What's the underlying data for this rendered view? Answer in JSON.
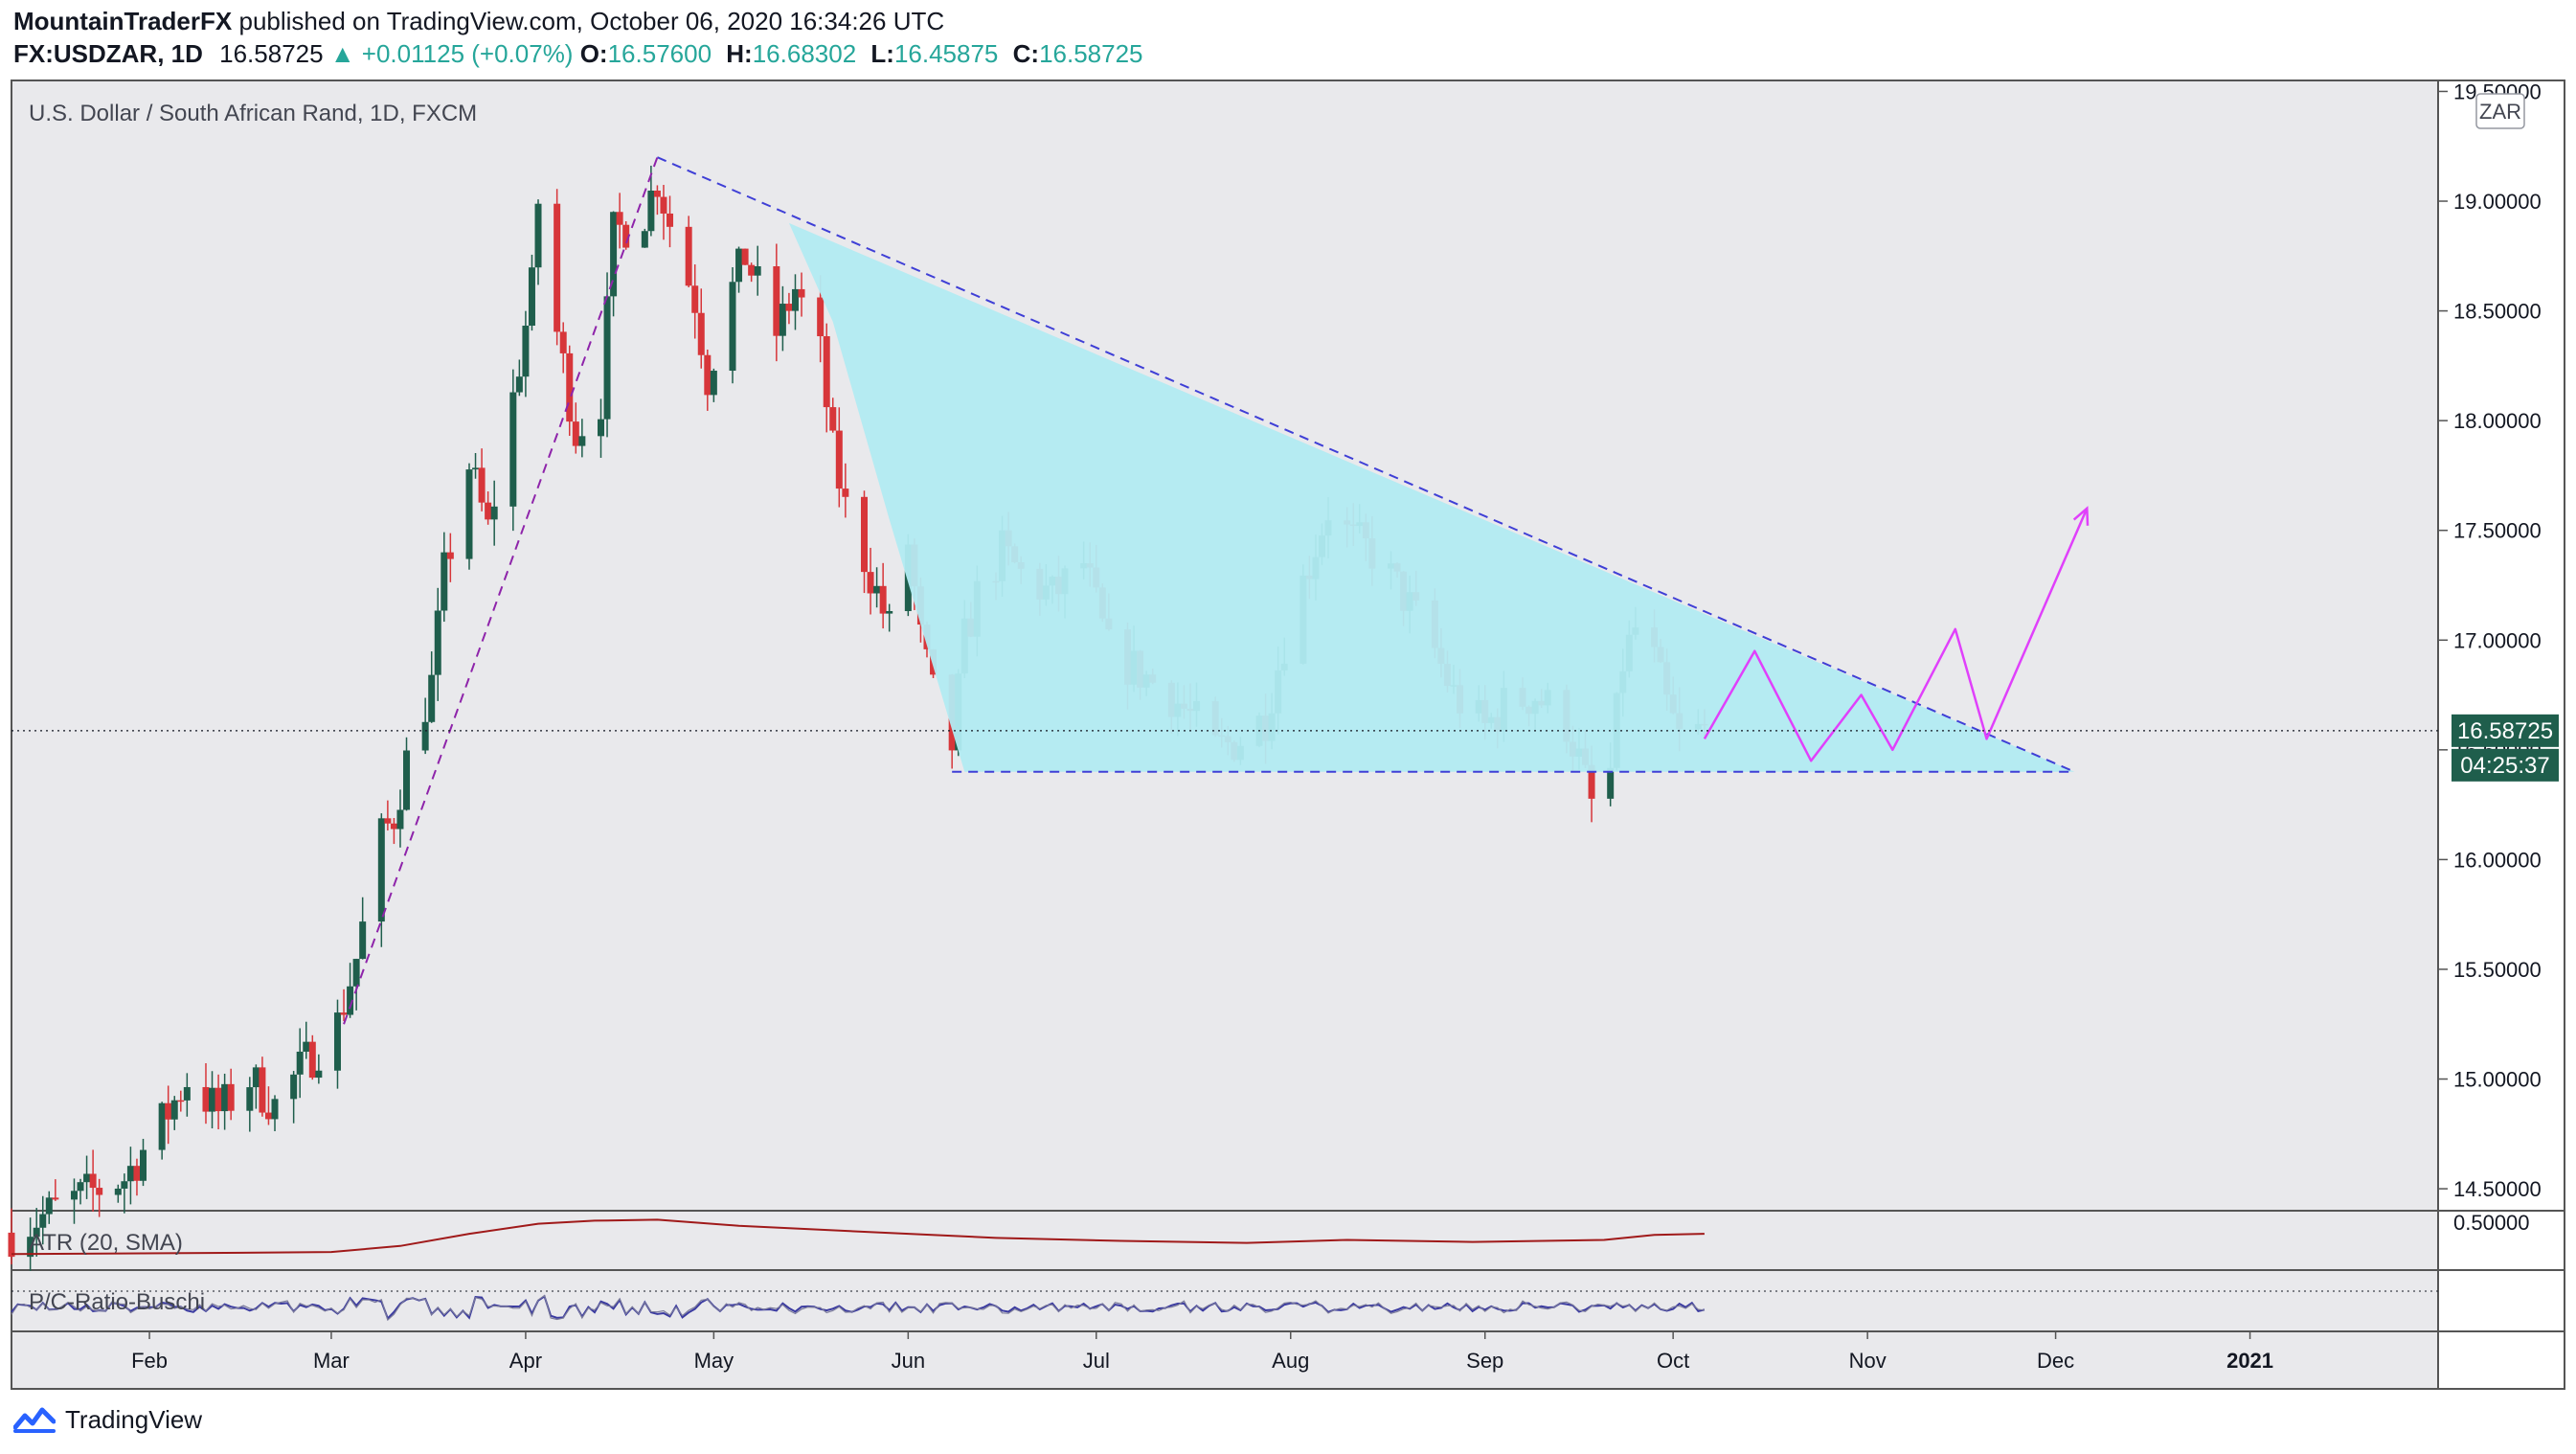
{
  "header": {
    "author": "MountainTraderFX",
    "published_text": "published on TradingView.com, October 06, 2020 16:34:26 UTC",
    "symbol": "FX:USDZAR, 1D",
    "last": "16.58725",
    "change": "▲ +0.01125 (+0.07%)",
    "o_label": "O:",
    "o_value": "16.57600",
    "h_label": "H:",
    "h_value": "16.68302",
    "l_label": "L:",
    "l_value": "16.45875",
    "c_label": "C:",
    "c_value": "16.58725"
  },
  "chart_title": "U.S. Dollar / South African Rand, 1D, FXCM",
  "currency_badge": "ZAR",
  "price_badge": "16.58725",
  "countdown_badge": "04:25:37",
  "atr_label": "ATR (20, SMA)",
  "atr_axis_label": "0.50000",
  "pc_label": "P/C-Ratio-Buschi",
  "brand": "TradingView",
  "colors": {
    "up": "#26a69a",
    "candle_up": "#1f5e4c",
    "candle_down": "#d7363a",
    "pattern_fill": "#b2ebf2",
    "trendline": "#3f3fd6",
    "projection": "#e040fb",
    "atr_line": "#a01a1a",
    "pc_line": "#3a3aa0"
  },
  "chart_data": {
    "type": "candlestick",
    "title": "U.S. Dollar / South African Rand, 1D, FXCM",
    "y_axis": {
      "min": 14.4,
      "max": 19.55,
      "ticks": [
        "14.50000",
        "15.00000",
        "15.50000",
        "16.00000",
        "16.50000",
        "17.00000",
        "17.50000",
        "18.00000",
        "18.50000",
        "19.00000",
        "19.50000"
      ]
    },
    "x_axis": {
      "start": "2020-01-10",
      "end": "2021-01-31",
      "labels": [
        {
          "date": "2020-02-01",
          "text": "Feb"
        },
        {
          "date": "2020-03-01",
          "text": "Mar"
        },
        {
          "date": "2020-04-01",
          "text": "Apr"
        },
        {
          "date": "2020-05-01",
          "text": "May"
        },
        {
          "date": "2020-06-01",
          "text": "Jun"
        },
        {
          "date": "2020-07-01",
          "text": "Jul"
        },
        {
          "date": "2020-08-01",
          "text": "Aug"
        },
        {
          "date": "2020-09-01",
          "text": "Sep"
        },
        {
          "date": "2020-10-01",
          "text": "Oct"
        },
        {
          "date": "2020-11-01",
          "text": "Nov"
        },
        {
          "date": "2020-12-01",
          "text": "Dec"
        },
        {
          "date": "2021-01-01",
          "text": "2021"
        }
      ]
    },
    "close_path": [
      [
        "2020-01-10",
        14.3
      ],
      [
        "2020-01-20",
        14.45
      ],
      [
        "2020-01-28",
        14.55
      ],
      [
        "2020-02-03",
        14.8
      ],
      [
        "2020-02-07",
        15.0
      ],
      [
        "2020-02-12",
        14.85
      ],
      [
        "2020-02-17",
        15.0
      ],
      [
        "2020-02-21",
        14.88
      ],
      [
        "2020-02-26",
        15.08
      ],
      [
        "2020-03-02",
        15.25
      ],
      [
        "2020-03-05",
        15.55
      ],
      [
        "2020-03-09",
        16.1
      ],
      [
        "2020-03-11",
        16.2
      ],
      [
        "2020-03-13",
        16.45
      ],
      [
        "2020-03-17",
        16.8
      ],
      [
        "2020-03-19",
        17.3
      ],
      [
        "2020-03-23",
        17.8
      ],
      [
        "2020-03-26",
        17.5
      ],
      [
        "2020-03-30",
        18.1
      ],
      [
        "2020-04-02",
        18.6
      ],
      [
        "2020-04-03",
        19.0
      ],
      [
        "2020-04-06",
        18.4
      ],
      [
        "2020-04-09",
        17.95
      ],
      [
        "2020-04-13",
        18.1
      ],
      [
        "2020-04-15",
        18.85
      ],
      [
        "2020-04-20",
        18.95
      ],
      [
        "2020-04-22",
        19.1
      ],
      [
        "2020-04-24",
        18.9
      ],
      [
        "2020-04-28",
        18.55
      ],
      [
        "2020-04-30",
        18.2
      ],
      [
        "2020-05-04",
        18.6
      ],
      [
        "2020-05-06",
        18.75
      ],
      [
        "2020-05-11",
        18.4
      ],
      [
        "2020-05-14",
        18.6
      ],
      [
        "2020-05-18",
        18.3
      ],
      [
        "2020-05-20",
        17.85
      ],
      [
        "2020-05-22",
        17.6
      ],
      [
        "2020-05-26",
        17.3
      ],
      [
        "2020-05-29",
        17.05
      ],
      [
        "2020-06-01",
        17.45
      ],
      [
        "2020-06-03",
        17.0
      ],
      [
        "2020-06-05",
        16.75
      ],
      [
        "2020-06-08",
        16.52
      ],
      [
        "2020-06-10",
        17.0
      ],
      [
        "2020-06-12",
        17.2
      ],
      [
        "2020-06-16",
        17.4
      ],
      [
        "2020-06-19",
        17.3
      ],
      [
        "2020-06-24",
        17.2
      ],
      [
        "2020-06-29",
        17.35
      ],
      [
        "2020-07-03",
        16.95
      ],
      [
        "2020-07-08",
        16.85
      ],
      [
        "2020-07-13",
        16.75
      ],
      [
        "2020-07-17",
        16.62
      ],
      [
        "2020-07-20",
        16.5
      ],
      [
        "2020-07-24",
        16.55
      ],
      [
        "2020-07-28",
        16.65
      ],
      [
        "2020-07-31",
        17.0
      ],
      [
        "2020-08-04",
        17.35
      ],
      [
        "2020-08-07",
        17.6
      ],
      [
        "2020-08-11",
        17.45
      ],
      [
        "2020-08-14",
        17.4
      ],
      [
        "2020-08-19",
        17.2
      ],
      [
        "2020-08-24",
        16.95
      ],
      [
        "2020-08-27",
        16.75
      ],
      [
        "2020-09-01",
        16.6
      ],
      [
        "2020-09-04",
        16.7
      ],
      [
        "2020-09-09",
        16.75
      ],
      [
        "2020-09-14",
        16.62
      ],
      [
        "2020-09-16",
        16.45
      ],
      [
        "2020-09-18",
        16.25
      ],
      [
        "2020-09-21",
        16.4
      ],
      [
        "2020-09-23",
        16.9
      ],
      [
        "2020-09-25",
        17.05
      ],
      [
        "2020-09-28",
        16.9
      ],
      [
        "2020-09-30",
        16.7
      ],
      [
        "2020-10-02",
        16.55
      ],
      [
        "2020-10-06",
        16.58725
      ]
    ],
    "overlays": {
      "descending_trendline": {
        "from": [
          "2020-04-22",
          19.2
        ],
        "to": [
          "2020-12-04",
          16.4
        ]
      },
      "support_line": {
        "from": [
          "2020-06-08",
          16.4
        ],
        "to": [
          "2020-12-04",
          16.4
        ]
      },
      "rally_trendline": {
        "from": [
          "2020-03-03",
          15.25
        ],
        "to": [
          "2020-04-22",
          19.2
        ]
      },
      "projection_path": [
        [
          "2020-10-06",
          16.55
        ],
        [
          "2020-10-14",
          16.95
        ],
        [
          "2020-10-23",
          16.45
        ],
        [
          "2020-10-31",
          16.75
        ],
        [
          "2020-11-05",
          16.5
        ],
        [
          "2020-11-15",
          17.05
        ],
        [
          "2020-11-20",
          16.55
        ],
        [
          "2020-12-06",
          17.6
        ]
      ]
    },
    "atr_series": [
      [
        "2020-01-10",
        0.14
      ],
      [
        "2020-02-10",
        0.15
      ],
      [
        "2020-03-01",
        0.16
      ],
      [
        "2020-03-12",
        0.22
      ],
      [
        "2020-03-23",
        0.34
      ],
      [
        "2020-04-03",
        0.44
      ],
      [
        "2020-04-12",
        0.47
      ],
      [
        "2020-04-22",
        0.48
      ],
      [
        "2020-05-05",
        0.42
      ],
      [
        "2020-05-25",
        0.36
      ],
      [
        "2020-06-15",
        0.3
      ],
      [
        "2020-07-05",
        0.27
      ],
      [
        "2020-07-25",
        0.25
      ],
      [
        "2020-08-10",
        0.28
      ],
      [
        "2020-08-30",
        0.26
      ],
      [
        "2020-09-20",
        0.28
      ],
      [
        "2020-09-28",
        0.33
      ],
      [
        "2020-10-06",
        0.34
      ]
    ],
    "atr_range": [
      0.0,
      0.55
    ],
    "pc_range": [
      0.0,
      1.0
    ]
  }
}
